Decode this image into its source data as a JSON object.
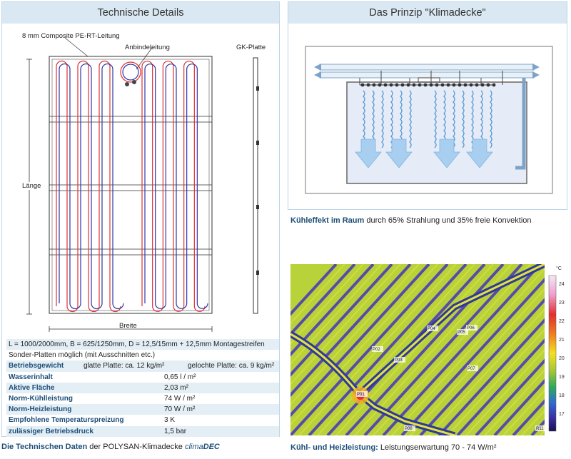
{
  "left_panel": {
    "title": "Technische Details",
    "labels": {
      "pipe": "8 mm Composite PE-RT-Leitung",
      "connection": "Anbindeleitung",
      "board": "GK-Platte",
      "length": "Länge",
      "width": "Breite"
    },
    "specs": {
      "dimensions": "L = 1000/2000mm, B = 625/1250mm, D = 12,5/15mm + 12,5mm Montagestreifen",
      "special": "Sonder-Platten möglich (mit Ausschnitten etc.)",
      "rows": [
        {
          "label": "Betriebsgewicht",
          "value": "glatte Platte: ca. 12 kg/m²",
          "value2": "gelochte Platte: ca. 9 kg/m²"
        },
        {
          "label": "Wasserinhalt",
          "value": "0,65 l / m²"
        },
        {
          "label": "Aktive Fläche",
          "value": "2,03 m²"
        },
        {
          "label": "Norm-Kühlleistung",
          "value": "74 W / m²"
        },
        {
          "label": "Norm-Heizleistung",
          "value": "70 W / m²"
        },
        {
          "label": "Empfohlene Temperaturspreizung",
          "value": "3 K"
        },
        {
          "label": "zulässiger Betriebsdruck",
          "value": "1,5 bar"
        }
      ]
    },
    "caption": {
      "bold": "Die Technischen Daten",
      "text": " der POLYSAN-Klimadecke ",
      "brand_a": "clima",
      "brand_b": "DEC"
    }
  },
  "right_panel": {
    "title": "Das Prinzip \"Klimadecke\"",
    "caption": {
      "bold": "Kühleffekt im Raum",
      "text": " durch 65% Strahlung und 35% freie Konvektion"
    }
  },
  "thermal": {
    "caption_bold": "Kühl- und Heizleistung:",
    "caption_text": " Leistungserwartung 70 - 74 W/m²",
    "unit": "°C",
    "scale": [
      "24",
      "23",
      "22",
      "21",
      "20",
      "19",
      "18",
      "17"
    ],
    "points": [
      "P04",
      "P05",
      "P06",
      "P02",
      "P03",
      "P07",
      "P01",
      "P08",
      "R11"
    ]
  },
  "colors": {
    "header_bg": "#d9e8f2",
    "label_blue": "#1d4e78",
    "pipe_red": "#e03030",
    "pipe_blue": "#2c36a8"
  }
}
